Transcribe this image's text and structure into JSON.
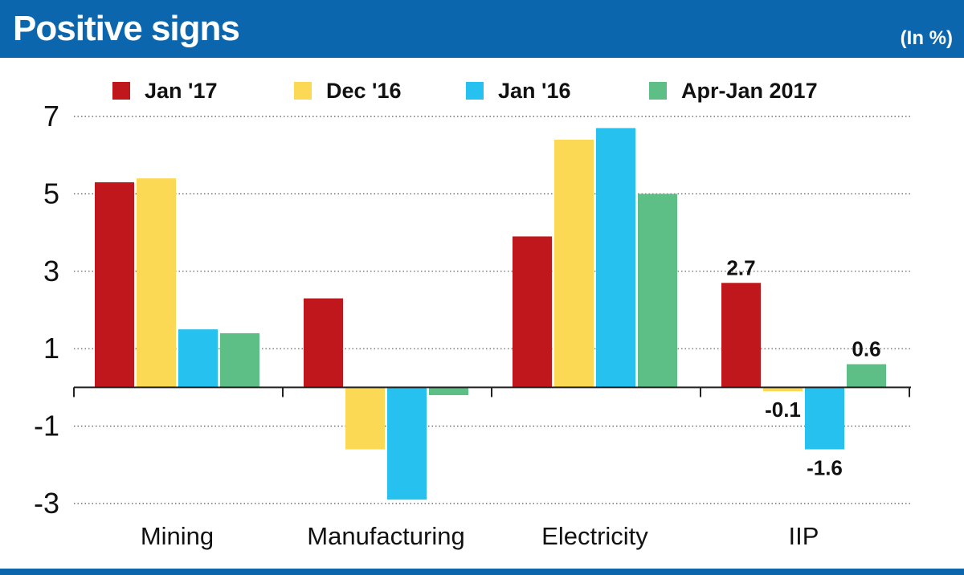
{
  "header": {
    "title": "Positive signs",
    "unit": "(In %)"
  },
  "colors": {
    "header_bg": "#0b66ad",
    "series": [
      "#c0171c",
      "#fcd955",
      "#26c1ef",
      "#5dbf86"
    ]
  },
  "chart_data": {
    "type": "bar",
    "title": "Positive signs",
    "ylabel": "",
    "xlabel": "",
    "ylim": [
      -3,
      7
    ],
    "yticks": [
      "7",
      "5",
      "3",
      "1",
      "-1",
      "-3"
    ],
    "legend_position": "top",
    "grid": "dotted horizontal",
    "categories": [
      "Mining",
      "Manufacturing",
      "Electricity",
      "IIP"
    ],
    "series": [
      {
        "name": "Jan '17",
        "values": [
          5.3,
          2.3,
          3.9,
          2.7
        ]
      },
      {
        "name": "Dec '16",
        "values": [
          5.4,
          -1.6,
          6.4,
          -0.1
        ]
      },
      {
        "name": "Jan '16",
        "values": [
          1.5,
          -2.9,
          6.7,
          -1.6
        ]
      },
      {
        "name": "Apr-Jan 2017",
        "values": [
          1.4,
          -0.2,
          5.0,
          0.6
        ]
      }
    ],
    "data_labels": [
      {
        "category": "IIP",
        "series": 0,
        "text": "2.7"
      },
      {
        "category": "IIP",
        "series": 1,
        "text": "-0.1"
      },
      {
        "category": "IIP",
        "series": 2,
        "text": "-1.6"
      },
      {
        "category": "IIP",
        "series": 3,
        "text": "0.6"
      }
    ]
  }
}
